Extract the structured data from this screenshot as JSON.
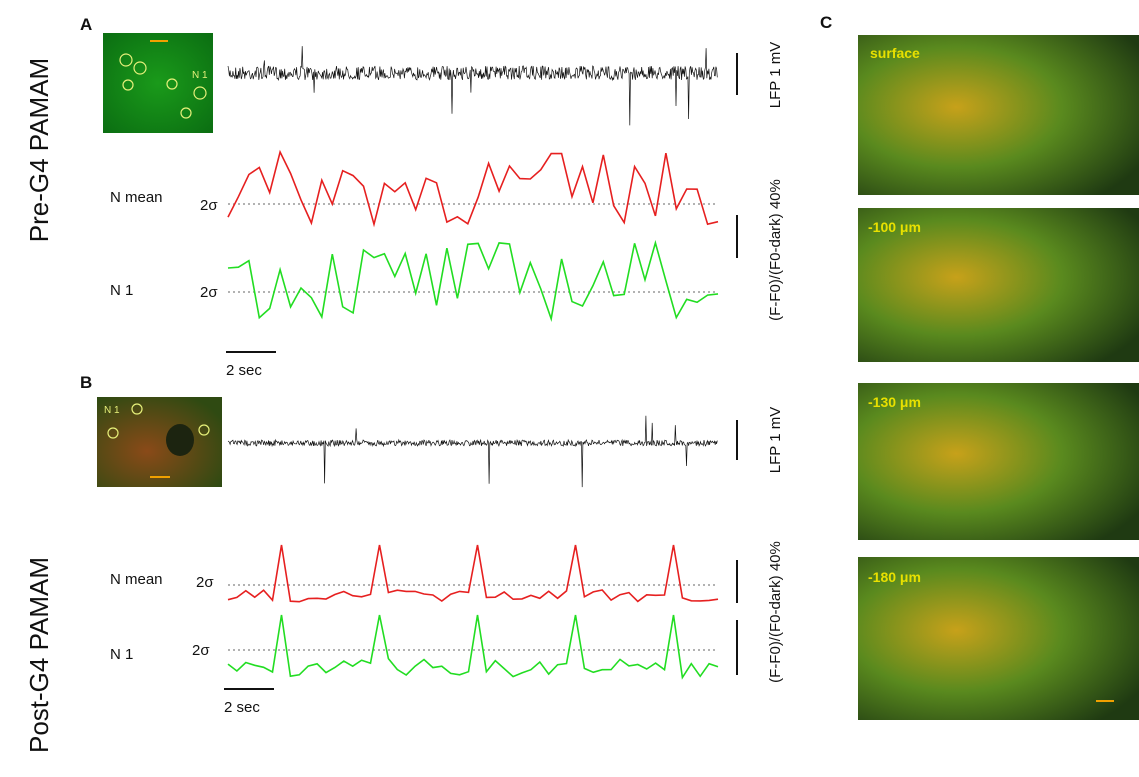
{
  "panels": {
    "a": {
      "label": "A",
      "condition": "Pre-G4 PAMAM",
      "image_label": "N 1",
      "lfp_scale": "LFP 1 mV",
      "trace_labels": [
        "N mean",
        "N 1"
      ],
      "threshold": [
        "2σ",
        "2σ"
      ],
      "df_scale": "(F-F0)/(F0-dark) 40%",
      "time_scale": "2 sec"
    },
    "b": {
      "label": "B",
      "condition": "Post-G4 PAMAM",
      "image_label": "N 1",
      "lfp_scale": "LFP 1 mV",
      "trace_labels": [
        "N mean",
        "N 1"
      ],
      "threshold": [
        "2σ",
        "2σ"
      ],
      "df_scale": "(F-F0)/(F0-dark) 40%",
      "time_scale": "2 sec"
    },
    "c": {
      "label": "C",
      "depths": [
        "surface",
        "-100 μm",
        "-130 μm",
        "-180 μm"
      ]
    }
  }
}
